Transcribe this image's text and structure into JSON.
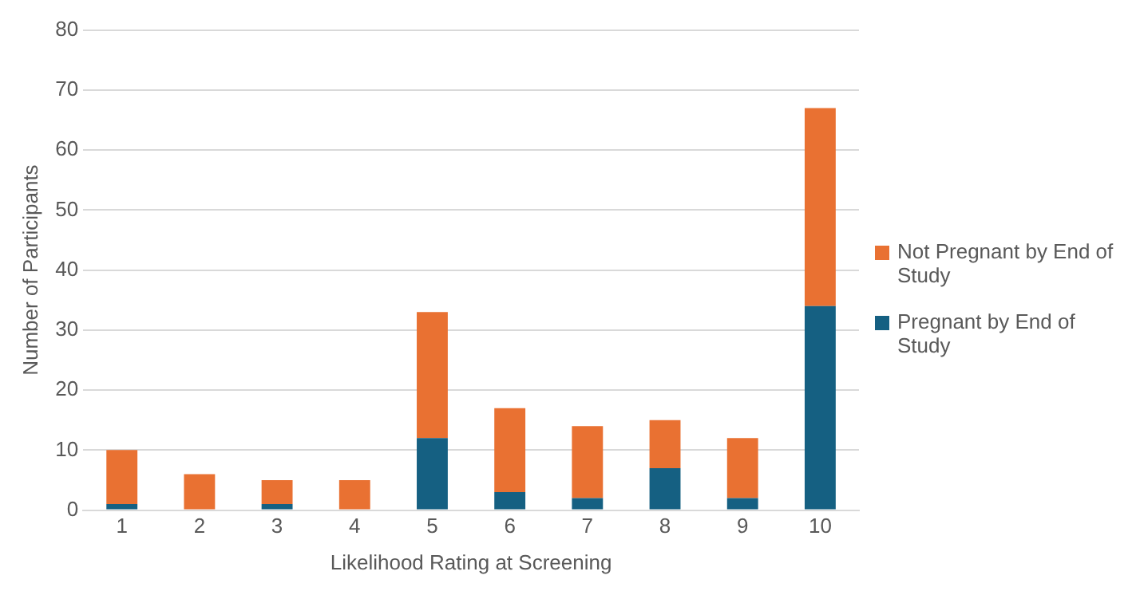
{
  "chart_data": {
    "type": "bar",
    "stacked": true,
    "xlabel": "Likelihood Rating at Screening",
    "ylabel": "Number of Participants",
    "categories": [
      "1",
      "2",
      "3",
      "4",
      "5",
      "6",
      "7",
      "8",
      "9",
      "10"
    ],
    "series": [
      {
        "name": "Pregnant by End of Study",
        "color": "#156082",
        "values": [
          1,
          0,
          1,
          0,
          12,
          3,
          2,
          7,
          2,
          34
        ]
      },
      {
        "name": "Not Pregnant by End of Study",
        "color": "#e97132",
        "values": [
          9,
          6,
          4,
          5,
          21,
          14,
          12,
          8,
          10,
          33
        ]
      }
    ],
    "ylim": [
      0,
      80
    ],
    "yticks": [
      0,
      10,
      20,
      30,
      40,
      50,
      60,
      70,
      80
    ],
    "grid": "y",
    "legend": "right"
  }
}
